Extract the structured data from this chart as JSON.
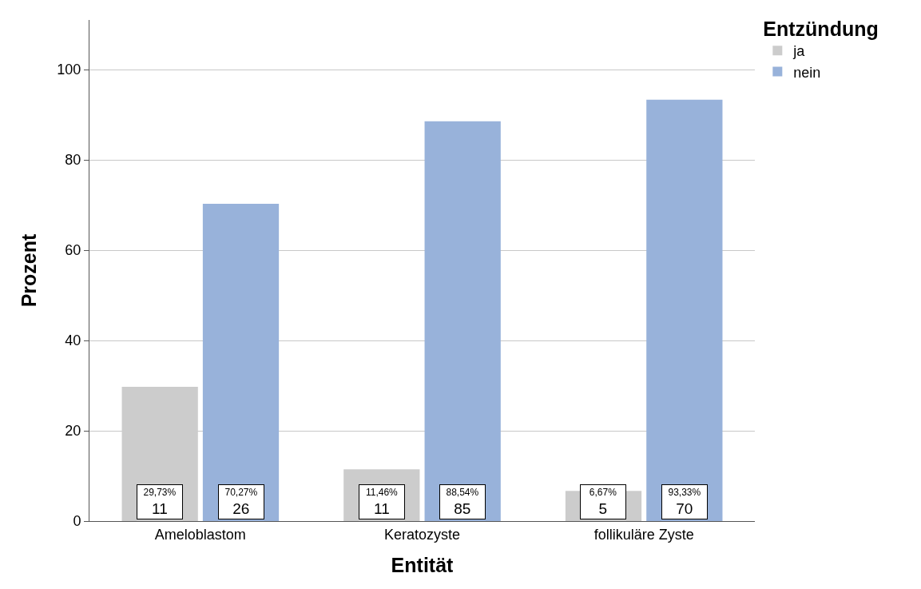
{
  "chart_data": {
    "type": "bar",
    "xlabel": "Entität",
    "ylabel": "Prozent",
    "legend_title": "Entzündung",
    "categories": [
      "Ameloblastom",
      "Keratozyste",
      "follikuläre Zyste"
    ],
    "series": [
      {
        "name": "ja",
        "color": "#cccccc",
        "values": [
          29.73,
          11.46,
          6.67
        ],
        "value_labels": [
          "29,73%\n11",
          "11,46%\n11",
          "6,67%\n5"
        ]
      },
      {
        "name": "nein",
        "color": "#98b2da",
        "values": [
          70.27,
          88.54,
          93.33
        ],
        "value_labels": [
          "70,27%\n26",
          "88,54%\n85",
          "93,33%\n70"
        ]
      }
    ],
    "ylim": [
      0,
      111
    ],
    "yticks": [
      0,
      20,
      40,
      60,
      80,
      100
    ],
    "grid": "y",
    "legend": "top right"
  }
}
